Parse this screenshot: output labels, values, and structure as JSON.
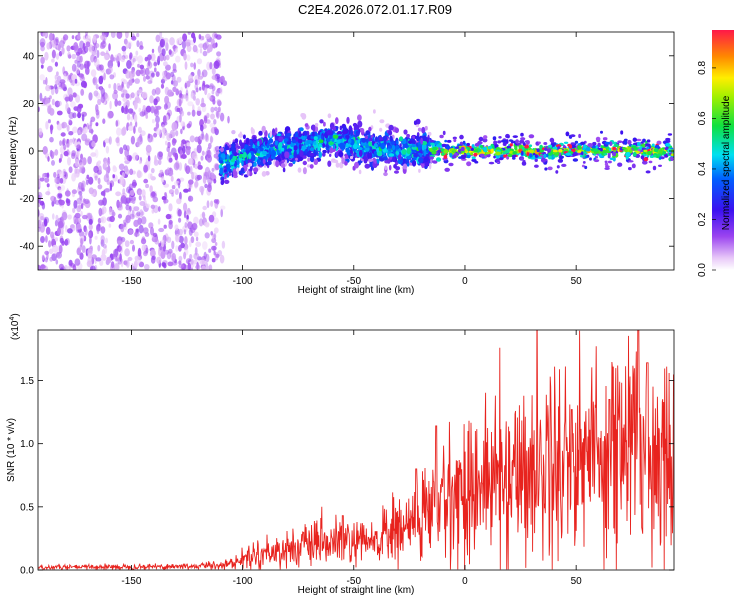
{
  "title": "C2E4.2026.072.01.17.R09",
  "chart_data": [
    {
      "type": "heatmap",
      "xlabel": "Height of straight line (km)",
      "ylabel": "Frequency (Hz)",
      "xlim": [
        -192,
        94
      ],
      "ylim": [
        -50,
        50
      ],
      "xticks": [
        -150,
        -100,
        -50,
        0,
        50
      ],
      "yticks": [
        -40,
        -20,
        0,
        20,
        40
      ],
      "grid": false,
      "colorbar": {
        "label": "Normalized spectral amplitude",
        "range": [
          0.0,
          0.95
        ],
        "ticks": [
          "0.0",
          "0.2",
          "0.4",
          "0.6",
          "0.8"
        ],
        "colormap": "rainbow (magenta-white, violet, blue, cyan, green, yellow, orange, red)"
      },
      "regions": [
        {
          "x_range": [
            -192,
            -110
          ],
          "freq_range": [
            -50,
            50
          ],
          "amplitude": 0.1,
          "description_note": "scattered low-amplitude noise"
        },
        {
          "x_range": [
            -110,
            -15
          ],
          "freq_range": [
            -10,
            12
          ],
          "amplitude": 0.35,
          "center_freq": 2
        },
        {
          "x_range": [
            -15,
            94
          ],
          "freq_range": [
            -4,
            4
          ],
          "amplitude": 0.6,
          "center_freq": 0,
          "peak_amplitude": 0.95
        }
      ],
      "band_centers": [
        {
          "x": -108,
          "freq": -5
        },
        {
          "x": -100,
          "freq": -2
        },
        {
          "x": -90,
          "freq": 0
        },
        {
          "x": -80,
          "freq": 2
        },
        {
          "x": -70,
          "freq": 3
        },
        {
          "x": -60,
          "freq": 5
        },
        {
          "x": -50,
          "freq": 3
        },
        {
          "x": -40,
          "freq": 1
        },
        {
          "x": -30,
          "freq": 0
        },
        {
          "x": -20,
          "freq": 1
        },
        {
          "x": -10,
          "freq": 0
        },
        {
          "x": 0,
          "freq": 0
        },
        {
          "x": 20,
          "freq": 0
        },
        {
          "x": 40,
          "freq": 0
        },
        {
          "x": 60,
          "freq": 0
        },
        {
          "x": 80,
          "freq": 0
        },
        {
          "x": 94,
          "freq": 0
        }
      ]
    },
    {
      "type": "line",
      "xlabel": "Height of straight line (km)",
      "ylabel": "SNR (10 * v/v)",
      "y_multiplier": "(x10",
      "y_multiplier_exp": "4",
      "y_multiplier_close": ")",
      "xlim": [
        -192,
        94
      ],
      "ylim": [
        0,
        1.9
      ],
      "xticks": [
        -150,
        -100,
        -50,
        0,
        50
      ],
      "yticks": [
        "0.0",
        "0.5",
        "1.0",
        "1.5"
      ],
      "grid": false,
      "series": [
        {
          "color": "#e8231e",
          "envelope_x": [
            -192,
            -120,
            -105,
            -95,
            -85,
            -75,
            -65,
            -55,
            -45,
            -35,
            -25,
            -18,
            -12,
            -5,
            5,
            15,
            25,
            35,
            45,
            55,
            65,
            75,
            85,
            94
          ],
          "envelope_y": [
            0.02,
            0.03,
            0.05,
            0.12,
            0.15,
            0.18,
            0.2,
            0.22,
            0.2,
            0.28,
            0.35,
            0.45,
            0.5,
            0.6,
            0.68,
            0.72,
            0.78,
            0.85,
            0.9,
            0.92,
            0.95,
            1.0,
            0.92,
            1.0
          ],
          "peaks": [
            {
              "x": -55,
              "y": 0.43
            },
            {
              "x": -22,
              "y": 0.8
            },
            {
              "x": -13,
              "y": 1.14
            },
            {
              "x": 48,
              "y": 1.27
            },
            {
              "x": 65,
              "y": 1.35
            },
            {
              "x": 78,
              "y": 1.95
            },
            {
              "x": 82,
              "y": 1.64
            }
          ]
        }
      ]
    }
  ]
}
